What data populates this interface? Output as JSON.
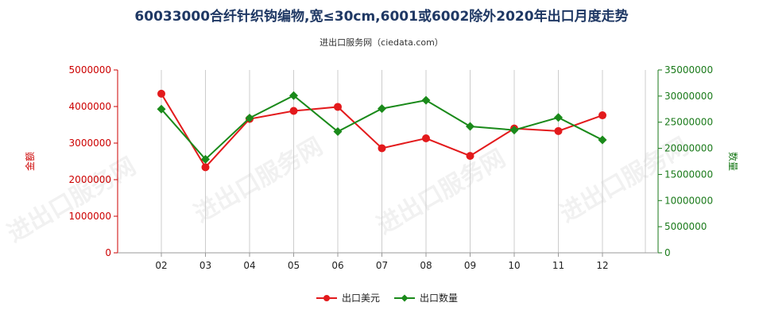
{
  "chart_data": {
    "type": "line",
    "title": "60033000合纤针织钩编物,宽≤30cm,6001或6002除外2020年出口月度走势",
    "subtitle": "进出口服务网（ciedata.com）",
    "categories": [
      "02",
      "03",
      "04",
      "05",
      "06",
      "07",
      "08",
      "09",
      "10",
      "11",
      "12"
    ],
    "y_left": {
      "label": "金额",
      "ylim": [
        0,
        5000000
      ],
      "ticks": [
        0,
        1000000,
        2000000,
        3000000,
        4000000,
        5000000
      ],
      "tick_labels": [
        "0",
        "1000000",
        "2000000",
        "3000000",
        "4000000",
        "5000000"
      ]
    },
    "y_right": {
      "label": "数量",
      "ylim": [
        0,
        35000000
      ],
      "ticks": [
        0,
        5000000,
        10000000,
        15000000,
        20000000,
        25000000,
        30000000,
        35000000
      ],
      "tick_labels": [
        "0",
        "5000000",
        "10000000",
        "15000000",
        "20000000",
        "25000000",
        "30000000",
        "35000000"
      ]
    },
    "series": [
      {
        "name": "出口美元",
        "axis": "left",
        "color": "#e31a1c",
        "values": [
          4350000,
          2340000,
          3660000,
          3880000,
          3990000,
          2860000,
          3130000,
          2650000,
          3400000,
          3330000,
          3760000
        ]
      },
      {
        "name": "出口数量",
        "axis": "right",
        "color": "#1a8a1a",
        "values": [
          27500000,
          17900000,
          25800000,
          30100000,
          23200000,
          27600000,
          29200000,
          24200000,
          23500000,
          25900000,
          21600000
        ]
      }
    ],
    "grid": "vertical",
    "legend": "bottom-center",
    "watermark": "进出口服务网"
  }
}
